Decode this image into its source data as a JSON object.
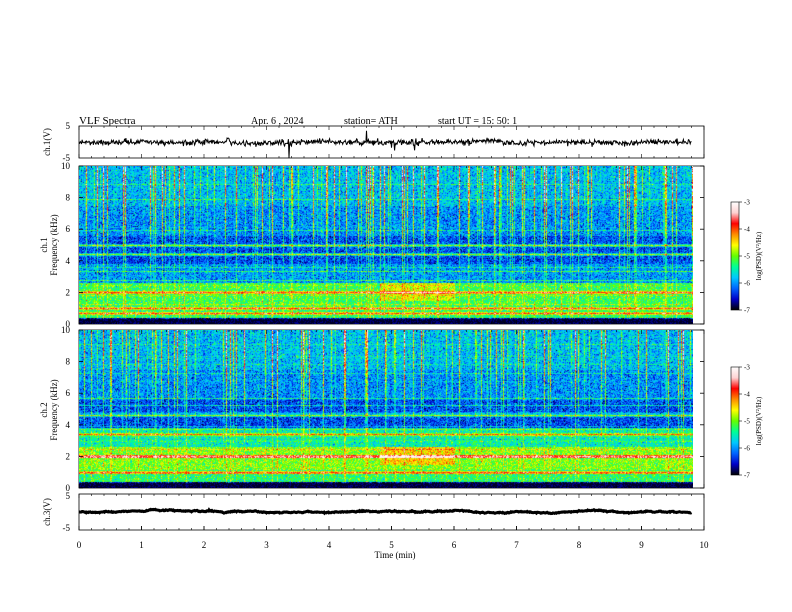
{
  "header": {
    "title": "VLF  Spectra",
    "date": "Apr. 6   , 2024",
    "station": "station= ATH",
    "start": "start  UT  =    15: 50: 1"
  },
  "chart_data": {
    "type": "heatmap",
    "xlabel": "Time  (min)",
    "xlim": [
      0,
      10
    ],
    "xticks": [
      "0",
      "1",
      "2",
      "3",
      "4",
      "5",
      "6",
      "7",
      "8",
      "9",
      "10"
    ],
    "data_end_min": 9.8,
    "panels": [
      {
        "id": "ch1-waveform",
        "ylabel": "ch.1(V)",
        "ylim": [
          -5,
          5
        ],
        "yticks": [
          "5",
          "-5"
        ],
        "trace_level": 0
      },
      {
        "id": "ch1-spectrogram",
        "ylabel_line1": "ch.1",
        "ylabel_line2": "Frequency  (kHz)",
        "ylim": [
          0,
          10
        ],
        "yticks": [
          "0",
          "2",
          "4",
          "6",
          "8",
          "10"
        ],
        "strong_lines_khz": [
          0.2,
          0.7,
          1.0,
          2.0,
          4.4,
          5.0
        ],
        "colorbar": {
          "label": "log(PSD)(V²/Hz)",
          "range": [
            -7,
            -3
          ],
          "ticks": [
            "-3",
            "-4",
            "-5",
            "-6",
            "-7"
          ]
        }
      },
      {
        "id": "ch2-spectrogram",
        "ylabel_line1": "ch.2",
        "ylabel_line2": "Frequency  (kHz)",
        "ylim": [
          0,
          10
        ],
        "yticks": [
          "0",
          "2",
          "4",
          "6",
          "8",
          "10"
        ],
        "strong_lines_khz": [
          0.2,
          1.0,
          2.0,
          3.4,
          4.6
        ],
        "colorbar": {
          "label": "log(PSD)(V²/Hz)",
          "range": [
            -7,
            -3
          ],
          "ticks": [
            "-3",
            "-4",
            "-5",
            "-6",
            "-7"
          ]
        }
      },
      {
        "id": "ch3-waveform",
        "ylabel": "ch.3(V)",
        "ylim": [
          -5,
          5
        ],
        "yticks": [
          "5",
          "-5"
        ],
        "trace_level": 0
      }
    ],
    "colormap": [
      "#000000",
      "#0000c8",
      "#0064ff",
      "#00c8ff",
      "#00ff96",
      "#64ff00",
      "#ffff00",
      "#ff8c00",
      "#ff0000",
      "#ffd2d2",
      "#ffffff"
    ]
  }
}
